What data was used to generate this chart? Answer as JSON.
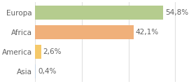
{
  "categories": [
    "Asia",
    "America",
    "Africa",
    "Europa"
  ],
  "values": [
    0.4,
    2.6,
    42.1,
    54.8
  ],
  "labels": [
    "0,4%",
    "2,6%",
    "42,1%",
    "54,8%"
  ],
  "bar_colors": [
    "#c8d8e8",
    "#f5c96a",
    "#f0b07a",
    "#b5cc8e"
  ],
  "background_color": "#ffffff",
  "xlim": [
    0,
    68
  ],
  "bar_height": 0.72,
  "label_fontsize": 7.5,
  "tick_fontsize": 7.5,
  "grid_color": "#e0e0e0",
  "text_color": "#606060"
}
